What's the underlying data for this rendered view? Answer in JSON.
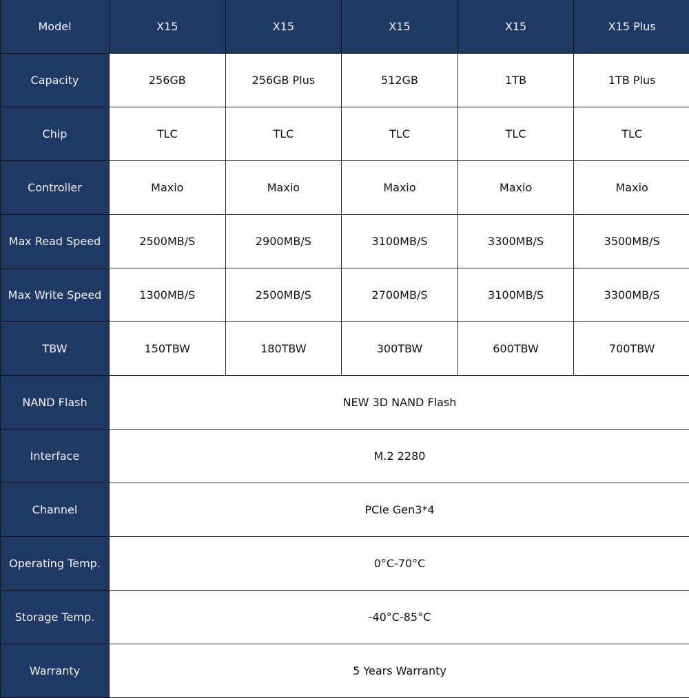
{
  "header": {
    "label": "Model",
    "models": [
      "X15",
      "X15",
      "X15",
      "X15",
      "X15 Plus"
    ]
  },
  "rows": [
    {
      "label": "Capacity",
      "values": [
        "256GB",
        "256GB Plus",
        "512GB",
        "1TB",
        "1TB Plus"
      ]
    },
    {
      "label": "Chip",
      "values": [
        "TLC",
        "TLC",
        "TLC",
        "TLC",
        "TLC"
      ]
    },
    {
      "label": "Controller",
      "values": [
        "Maxio",
        "Maxio",
        "Maxio",
        "Maxio",
        "Maxio"
      ]
    },
    {
      "label": "Max Read Speed",
      "values": [
        "2500MB/S",
        "2900MB/S",
        "3100MB/S",
        "3300MB/S",
        "3500MB/S"
      ]
    },
    {
      "label": "Max Write Speed",
      "values": [
        "1300MB/S",
        "2500MB/S",
        "2700MB/S",
        "3100MB/S",
        "3300MB/S"
      ]
    },
    {
      "label": "TBW",
      "values": [
        "150TBW",
        "180TBW",
        "300TBW",
        "600TBW",
        "700TBW"
      ]
    }
  ],
  "shared_rows": [
    {
      "label": "NAND Flash",
      "value": "NEW 3D NAND Flash"
    },
    {
      "label": "Interface",
      "value": "M.2 2280"
    },
    {
      "label": "Channel",
      "value": "PCIe Gen3*4"
    },
    {
      "label": "Operating Temp.",
      "value": "0°C-70°C"
    },
    {
      "label": "Storage Temp.",
      "value": "-40°C-85°C"
    },
    {
      "label": "Warranty",
      "value": "5 Years Warranty"
    }
  ],
  "colors": {
    "header_bg": "#1f3864",
    "header_text": "#f2f4f8",
    "cell_bg": "#ffffff"
  }
}
